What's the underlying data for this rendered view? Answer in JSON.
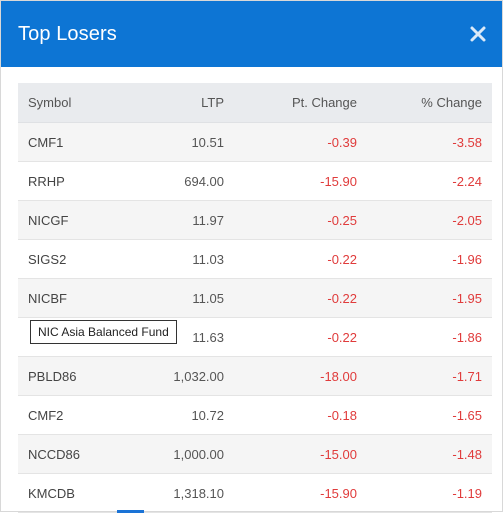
{
  "modal": {
    "title": "Top Losers",
    "close_icon": "close-icon"
  },
  "table": {
    "headers": {
      "symbol": "Symbol",
      "ltp": "LTP",
      "pt_change": "Pt. Change",
      "pct_change": "% Change"
    },
    "rows": [
      {
        "symbol": "CMF1",
        "ltp": "10.51",
        "pt_change": "-0.39",
        "pct_change": "-3.58"
      },
      {
        "symbol": "RRHP",
        "ltp": "694.00",
        "pt_change": "-15.90",
        "pct_change": "-2.24"
      },
      {
        "symbol": "NICGF",
        "ltp": "11.97",
        "pt_change": "-0.25",
        "pct_change": "-2.05"
      },
      {
        "symbol": "SIGS2",
        "ltp": "11.03",
        "pt_change": "-0.22",
        "pct_change": "-1.96"
      },
      {
        "symbol": "NICBF",
        "ltp": "11.05",
        "pt_change": "-0.22",
        "pct_change": "-1.95"
      },
      {
        "symbol": "",
        "ltp": "11.63",
        "pt_change": "-0.22",
        "pct_change": "-1.86"
      },
      {
        "symbol": "PBLD86",
        "ltp": "1,032.00",
        "pt_change": "-18.00",
        "pct_change": "-1.71"
      },
      {
        "symbol": "CMF2",
        "ltp": "10.72",
        "pt_change": "-0.18",
        "pct_change": "-1.65"
      },
      {
        "symbol": "NCCD86",
        "ltp": "1,000.00",
        "pt_change": "-15.00",
        "pct_change": "-1.48"
      },
      {
        "symbol": "KMCDB",
        "ltp": "1,318.10",
        "pt_change": "-15.90",
        "pct_change": "-1.19"
      }
    ]
  },
  "tooltip": {
    "text": "NIC Asia Balanced Fund"
  },
  "colors": {
    "header_bg": "#0d75d4",
    "negative": "#e03b3b",
    "table_head_bg": "#e9ebee"
  }
}
